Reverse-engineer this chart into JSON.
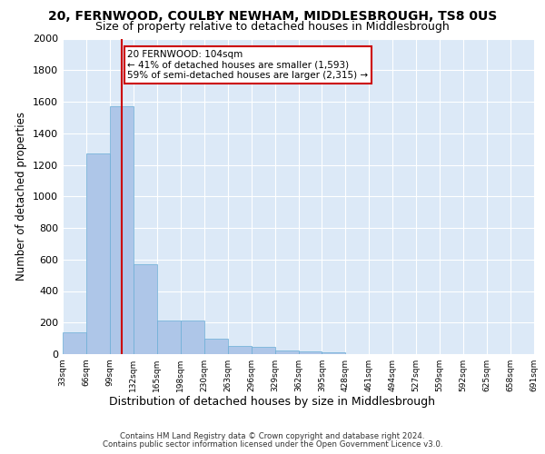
{
  "title1": "20, FERNWOOD, COULBY NEWHAM, MIDDLESBROUGH, TS8 0US",
  "title2": "Size of property relative to detached houses in Middlesbrough",
  "xlabel": "Distribution of detached houses by size in Middlesbrough",
  "ylabel": "Number of detached properties",
  "bar_values": [
    140,
    1270,
    1570,
    570,
    215,
    215,
    95,
    50,
    45,
    25,
    15,
    10,
    0,
    0,
    0,
    0,
    0,
    0,
    0,
    0
  ],
  "bin_labels": [
    "33sqm",
    "66sqm",
    "99sqm",
    "132sqm",
    "165sqm",
    "198sqm",
    "230sqm",
    "263sqm",
    "296sqm",
    "329sqm",
    "362sqm",
    "395sqm",
    "428sqm",
    "461sqm",
    "494sqm",
    "527sqm",
    "559sqm",
    "592sqm",
    "625sqm",
    "658sqm",
    "691sqm"
  ],
  "bar_color": "#aec6e8",
  "bar_edge_color": "#6aaed6",
  "highlight_bar_index": 2,
  "highlight_line_color": "#cc0000",
  "property_line_x": 2,
  "annotation_text": "20 FERNWOOD: 104sqm\n← 41% of detached houses are smaller (1,593)\n59% of semi-detached houses are larger (2,315) →",
  "annotation_box_color": "#cc0000",
  "ylim": [
    0,
    2000
  ],
  "yticks": [
    0,
    200,
    400,
    600,
    800,
    1000,
    1200,
    1400,
    1600,
    1800,
    2000
  ],
  "footnote1": "Contains HM Land Registry data © Crown copyright and database right 2024.",
  "footnote2": "Contains public sector information licensed under the Open Government Licence v3.0.",
  "background_color": "#dce9f7",
  "title_fontsize": 10,
  "subtitle_fontsize": 9
}
